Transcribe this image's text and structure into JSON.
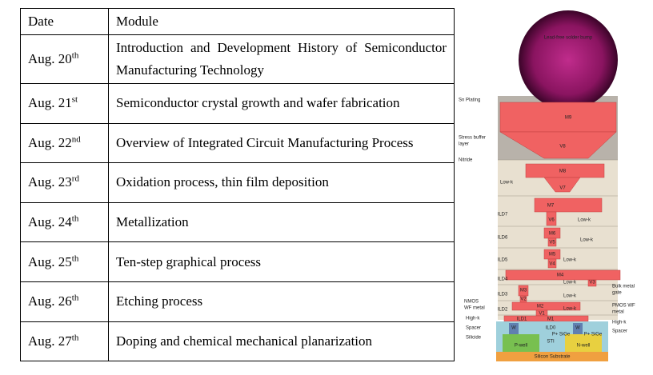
{
  "table": {
    "header": [
      "Date",
      "Module"
    ],
    "rows": [
      {
        "date": "Aug. 20",
        "suffix": "th",
        "module": "Introduction and Development History of Semiconductor Manufacturing Technology"
      },
      {
        "date": "Aug. 21",
        "suffix": "st",
        "module": "Semiconductor crystal growth and wafer fabrication"
      },
      {
        "date": "Aug. 22",
        "suffix": "nd",
        "module": "Overview of Integrated Circuit Manufacturing Process"
      },
      {
        "date": "Aug. 23",
        "suffix": "rd",
        "module": "Oxidation process, thin film deposition"
      },
      {
        "date": "Aug. 24",
        "suffix": "th",
        "module": "Metallization"
      },
      {
        "date": "Aug. 25",
        "suffix": "th",
        "module": "Ten-step graphical process"
      },
      {
        "date": "Aug. 26",
        "suffix": "th",
        "module": "Etching process"
      },
      {
        "date": "Aug. 27",
        "suffix": "th",
        "module": "Doping and chemical mechanical planarization"
      }
    ]
  },
  "diagram": {
    "labels": [
      "Lead-free solder bump",
      "Sn Plating",
      "Stress buffer",
      "layer",
      "Nitride",
      "M9",
      "V8",
      "M8",
      "V7",
      "Low-k",
      "M7",
      "ILD7",
      "Low-k",
      "V6",
      "M6",
      "ILD6",
      "V5",
      "Low-k",
      "M5",
      "ILD5",
      "V4",
      "Low-k",
      "M4",
      "ILD4",
      "Low-k",
      "V3",
      "M3",
      "ILD3",
      "V2",
      "Low-k",
      "M2",
      "ILD2",
      "Low-k",
      "V1",
      "M1",
      "ILD1",
      "ILD0",
      "W",
      "W",
      "STI",
      "P-well",
      "N-well",
      "P+ SiGe",
      "P+ SiGe",
      "Silicon Substrate",
      "NMOS",
      "WF metal",
      "High-k",
      "Spacer",
      "Silicide",
      "Bulk metal",
      "gate",
      "PMOS WF",
      "metal",
      "High-k",
      "Spacer"
    ]
  }
}
